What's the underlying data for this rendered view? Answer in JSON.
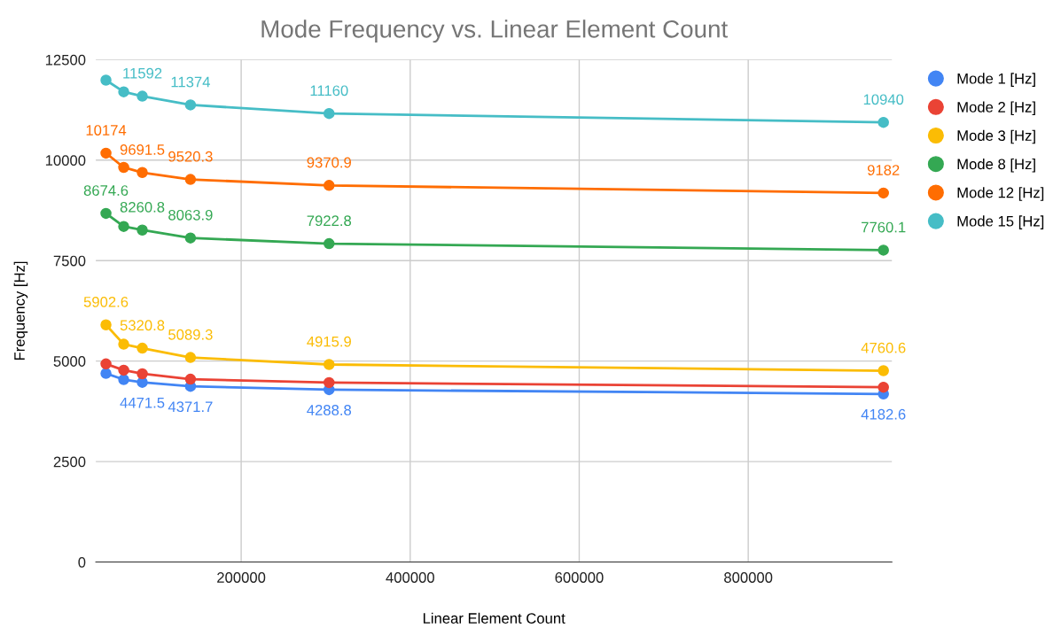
{
  "chart_data": {
    "type": "line",
    "title": "Mode Frequency vs. Linear Element Count",
    "xlabel": "Linear Element Count",
    "ylabel": "Frequency [Hz]",
    "x": [
      40000,
      61000,
      83000,
      140000,
      304000,
      960000
    ],
    "xlim": [
      28000,
      970000
    ],
    "xticks": [
      200000,
      400000,
      600000,
      800000
    ],
    "ylim": [
      0,
      12500
    ],
    "yticks": [
      0,
      2500,
      5000,
      7500,
      10000,
      12500
    ],
    "grid": true,
    "legend": "right",
    "marker": "circle",
    "line_style": "solid",
    "series": [
      {
        "name": "Mode 1 [Hz]",
        "color": "#4285f4",
        "values": [
          4694,
          4540,
          4471.5,
          4371.7,
          4288.8,
          4182.6
        ],
        "value_labels": [
          null,
          null,
          "4471.5",
          "4371.7",
          "4288.8",
          "4182.6"
        ]
      },
      {
        "name": "Mode 2 [Hz]",
        "color": "#ea4335",
        "values": [
          4930,
          4775,
          4685,
          4550,
          4465,
          4350
        ]
      },
      {
        "name": "Mode 3 [Hz]",
        "color": "#fbbc04",
        "values": [
          5902.6,
          5420,
          5320.8,
          5089.3,
          4915.9,
          4760.6
        ],
        "value_labels": [
          "5902.6",
          null,
          "5320.8",
          "5089.3",
          "4915.9",
          "4760.6"
        ]
      },
      {
        "name": "Mode 8 [Hz]",
        "color": "#34a853",
        "values": [
          8674.6,
          8350,
          8260.8,
          8063.9,
          7922.8,
          7760.1
        ],
        "value_labels": [
          "8674.6",
          null,
          "8260.8",
          "8063.9",
          "7922.8",
          "7760.1"
        ]
      },
      {
        "name": "Mode 12 [Hz]",
        "color": "#ff6d01",
        "values": [
          10174,
          9820,
          9691.5,
          9520.3,
          9370.9,
          9182
        ],
        "value_labels": [
          "10174",
          null,
          "9691.5",
          "9520.3",
          "9370.9",
          "9182"
        ]
      },
      {
        "name": "Mode 15 [Hz]",
        "color": "#46bdc6",
        "values": [
          11990,
          11700,
          11592,
          11374,
          11160,
          10940
        ],
        "value_labels": [
          null,
          null,
          "11592",
          "11374",
          "11160",
          "10940"
        ]
      }
    ]
  }
}
